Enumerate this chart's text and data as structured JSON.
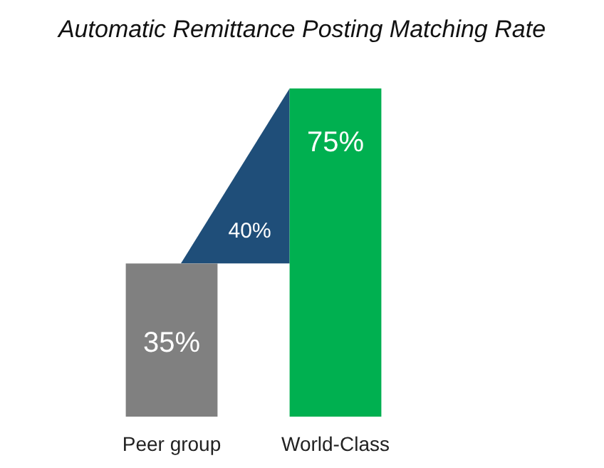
{
  "chart_data": {
    "type": "bar",
    "title": "Automatic Remittance Posting Matching Rate",
    "categories": [
      "Peer group",
      "World-Class"
    ],
    "values": [
      35,
      75
    ],
    "colors": [
      "#808080",
      "#00b050"
    ],
    "data_labels": true,
    "value_labels": [
      "35%",
      "75%"
    ],
    "annotations": [
      "40%"
    ]
  }
}
